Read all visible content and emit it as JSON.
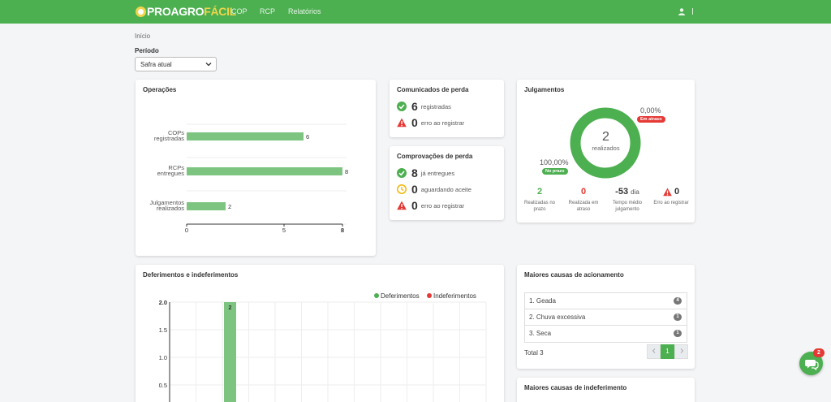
{
  "nav": {
    "logo_left": "PROAGRO",
    "logo_right": "FÁCIL",
    "items": [
      "COP",
      "RCP",
      "Relatórios"
    ]
  },
  "breadcrumb": "Início",
  "period": {
    "label": "Período",
    "selected": "Safra atual"
  },
  "operacoes": {
    "title": "Operações",
    "chart_data": {
      "type": "bar",
      "orientation": "horizontal",
      "categories": [
        "COPs registradas",
        "RCPs entregues",
        "Julgamentos realizados"
      ],
      "category_lines": [
        [
          "COPs",
          "registradas"
        ],
        [
          "RCPs",
          "entregues"
        ],
        [
          "Julgamentos",
          "realizados"
        ]
      ],
      "values": [
        6,
        8,
        2
      ],
      "xlim": [
        0,
        8
      ],
      "xticks": [
        0,
        5,
        8
      ],
      "color": "#7cc47f",
      "grid": true
    }
  },
  "comunicados": {
    "title": "Comunicados de perda",
    "rows": [
      {
        "num": "6",
        "label": "registradas",
        "icon": "check-circle-icon"
      },
      {
        "num": "0",
        "label": "erro ao registrar",
        "icon": "warning-icon"
      }
    ]
  },
  "comprovacoes": {
    "title": "Comprovações de perda",
    "rows": [
      {
        "num": "8",
        "label": "já entregues",
        "icon": "check-circle-icon"
      },
      {
        "num": "0",
        "label": "aguardando aceite",
        "icon": "clock-icon"
      },
      {
        "num": "0",
        "label": "erro ao registrar",
        "icon": "warning-icon"
      }
    ]
  },
  "julgamentos": {
    "title": "Julgamentos",
    "center_value": "2",
    "center_label": "realizados",
    "on_time_pct": "100,00%",
    "on_time_pill": "No prazo",
    "late_pct": "0,00%",
    "late_pill": "Em atraso",
    "on_time_fraction": 1.0,
    "stats": [
      {
        "value": "2",
        "label": "Realizadas no prazo",
        "color": "#4caf50"
      },
      {
        "value": "0",
        "label": "Realizada em atraso",
        "color": "#e53935"
      },
      {
        "value": "-53",
        "unit": "dia",
        "label": "Tempo médio julgamento",
        "color": "#333333"
      },
      {
        "value": "0",
        "label": "Erro ao registrar",
        "color": "#333333"
      }
    ]
  },
  "deferimentos": {
    "title": "Deferimentos e indeferimentos",
    "chart_data": {
      "type": "bar",
      "series": [
        {
          "name": "Deferimentos",
          "color": "#4caf50",
          "values": [
            2
          ]
        },
        {
          "name": "Indeferimentos",
          "color": "#e53935",
          "values": [
            0
          ]
        }
      ],
      "ylim": [
        0,
        2.0
      ],
      "yticks": [
        "2.0",
        "1.5",
        "1.0",
        "0.5"
      ],
      "data_labels": [
        "2"
      ],
      "legend": "top-right",
      "grid": true
    }
  },
  "causas": {
    "title": "Maiores causas de acionamento",
    "items": [
      {
        "label": "1. Geada",
        "count": "4"
      },
      {
        "label": "2. Chuva excessiva",
        "count": "1"
      },
      {
        "label": "3. Seca",
        "count": "1"
      }
    ],
    "total": "Total 3",
    "page": "1"
  },
  "causas_indef": {
    "title": "Maiores causas de indeferimento"
  },
  "chat": {
    "badge": "2"
  },
  "colors": {
    "brand": "#4caf50",
    "accent_yellow": "#f0d54c",
    "danger": "#e53935",
    "warning": "#f2b705"
  }
}
